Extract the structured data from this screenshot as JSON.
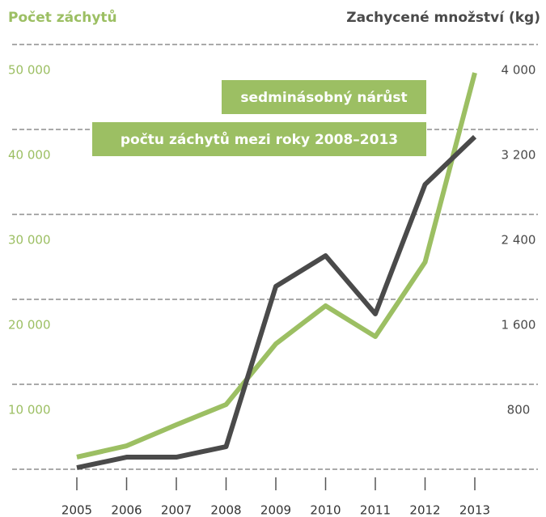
{
  "chart_data": {
    "type": "line",
    "title_left": "Počet záchytů",
    "title_right": "Zachycené množství (kg)",
    "annotations": [
      "sedminásobný nárůst",
      "počtu záchytů mezi roky 2008–2013"
    ],
    "x": [
      2005,
      2006,
      2007,
      2008,
      2009,
      2010,
      2011,
      2012,
      2013
    ],
    "series": [
      {
        "name": "Počet záchytů",
        "color": "#9cbf63",
        "values": [
          1430,
          2760,
          5240,
          7620,
          14760,
          19240,
          15620,
          24380,
          46670
        ]
      },
      {
        "name": "Zachycené množství (kg)",
        "color": "#4a4a4a",
        "axis": "y2",
        "values": [
          15,
          114,
          114,
          213,
          1722,
          2011,
          1463,
          2682,
          3131
        ]
      }
    ],
    "ylim": [
      0,
      50000
    ],
    "yticks": [
      {
        "value": 10000,
        "label": "10 000"
      },
      {
        "value": 20000,
        "label": "20 000"
      },
      {
        "value": 30000,
        "label": "30 000"
      },
      {
        "value": 40000,
        "label": "40 000"
      },
      {
        "value": 50000,
        "label": "50 000"
      }
    ],
    "y2lim": [
      0,
      4000
    ],
    "y2ticks": [
      800,
      {
        "value": 1600,
        "label": "1 600"
      },
      {
        "value": 2400,
        "label": "2 400"
      },
      {
        "value": 3200,
        "label": "3 200"
      },
      {
        "value": 4000,
        "label": "4 000"
      }
    ],
    "grid": true
  }
}
